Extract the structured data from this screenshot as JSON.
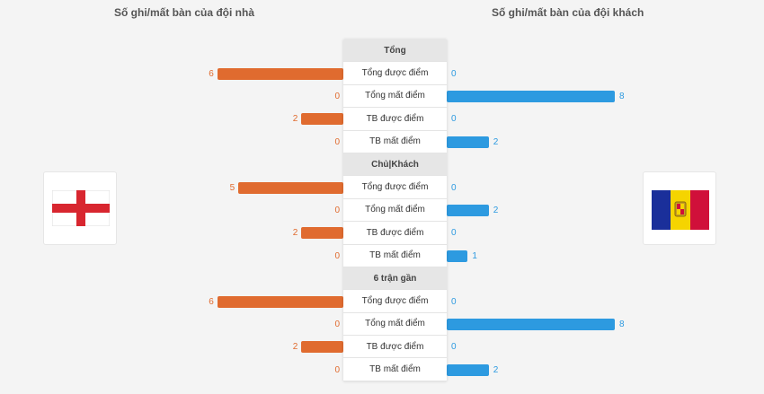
{
  "header": {
    "home_title": "Số ghi/mất bàn của đội nhà",
    "away_title": "Số ghi/mất bàn của đội khách"
  },
  "home_team": {
    "flag": "england-flag-icon"
  },
  "away_team": {
    "flag": "andorra-flag-icon"
  },
  "colors": {
    "home": "#e06b2f",
    "away": "#2d9ae0"
  },
  "max_value": 8,
  "sections": [
    {
      "title": "Tổng",
      "rows": [
        {
          "label": "Tổng được điểm",
          "home": 6,
          "away": 0
        },
        {
          "label": "Tổng mất điểm",
          "home": 0,
          "away": 8
        },
        {
          "label": "TB được điểm",
          "home": 2,
          "away": 0
        },
        {
          "label": "TB mất điểm",
          "home": 0,
          "away": 2
        }
      ]
    },
    {
      "title": "Chủ|Khách",
      "rows": [
        {
          "label": "Tổng được điểm",
          "home": 5,
          "away": 0
        },
        {
          "label": "Tổng mất điểm",
          "home": 0,
          "away": 2
        },
        {
          "label": "TB được điểm",
          "home": 2,
          "away": 0
        },
        {
          "label": "TB mất điểm",
          "home": 0,
          "away": 1
        }
      ]
    },
    {
      "title": "6 trận gần",
      "rows": [
        {
          "label": "Tổng được điểm",
          "home": 6,
          "away": 0
        },
        {
          "label": "Tổng mất điểm",
          "home": 0,
          "away": 8
        },
        {
          "label": "TB được điểm",
          "home": 2,
          "away": 0
        },
        {
          "label": "TB mất điểm",
          "home": 0,
          "away": 2
        }
      ]
    }
  ]
}
